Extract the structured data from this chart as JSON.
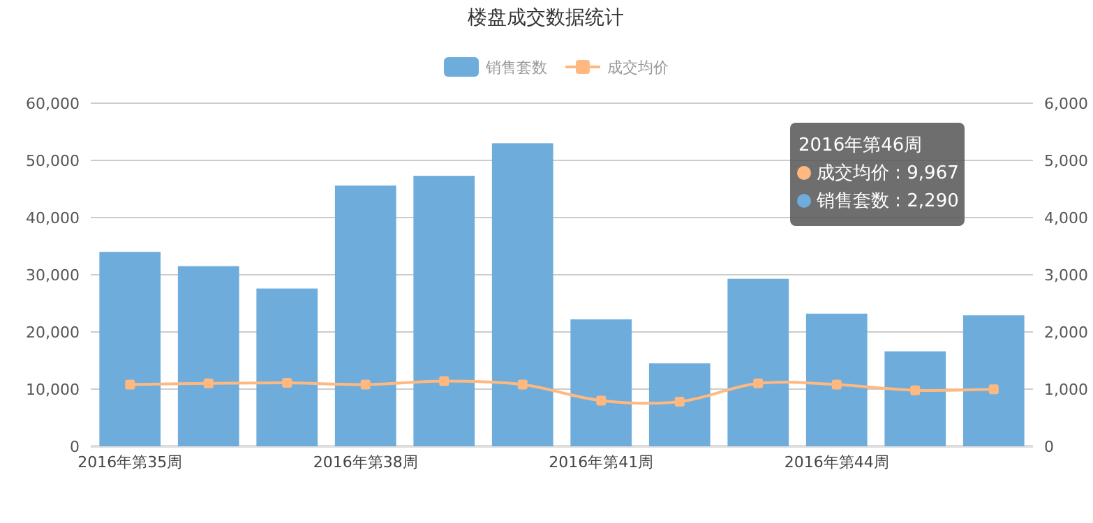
{
  "chart_data": {
    "type": "bar",
    "title": "楼盘成交数据统计",
    "categories": [
      "2016年第35周",
      null,
      null,
      "2016年第38周",
      null,
      null,
      "2016年第41周",
      null,
      null,
      "2016年第44周",
      null,
      null
    ],
    "series": [
      {
        "name": "销售套数",
        "axis": "y2",
        "color": "#6eaddb",
        "values": [
          3400,
          3150,
          2760,
          4560,
          4730,
          5300,
          2220,
          1450,
          2930,
          2320,
          1660,
          2290
        ]
      },
      {
        "name": "成交均价",
        "type": "line",
        "axis": "y",
        "color": "#ffb980",
        "marker": "square",
        "values": [
          10800,
          11000,
          11100,
          10800,
          11400,
          10800,
          8000,
          7800,
          11000,
          10800,
          9800,
          9967
        ]
      }
    ],
    "ylim": [
      0,
      60000
    ],
    "yticks": [
      0,
      {
        "value": 10000,
        "label": "10,000"
      },
      {
        "value": 20000,
        "label": "20,000"
      },
      {
        "value": 30000,
        "label": "30,000"
      },
      {
        "value": 40000,
        "label": "40,000"
      },
      {
        "value": 50000,
        "label": "50,000"
      },
      {
        "value": 60000,
        "label": "60,000"
      }
    ],
    "y2lim": [
      0,
      6000
    ],
    "y2ticks": [
      0,
      {
        "value": 1000,
        "label": "1,000"
      },
      {
        "value": 2000,
        "label": "2,000"
      },
      {
        "value": 3000,
        "label": "3,000"
      },
      {
        "value": 4000,
        "label": "4,000"
      },
      {
        "value": 5000,
        "label": "5,000"
      },
      {
        "value": 6000,
        "label": "6,000"
      }
    ],
    "grid": "y",
    "legend": "top",
    "annotations": [
      "2016年第46周",
      "成交均价 : 9,967",
      "销售套数 : 2,290"
    ]
  }
}
